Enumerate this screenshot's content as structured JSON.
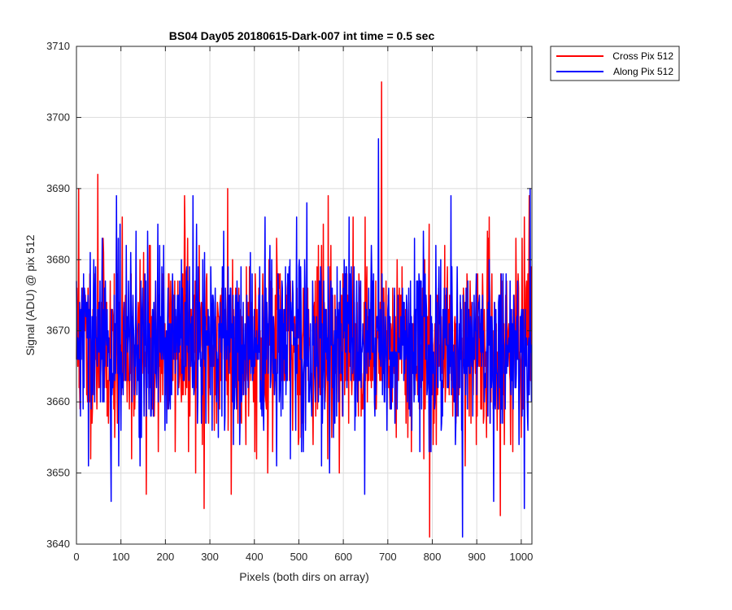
{
  "chart_data": {
    "type": "line",
    "title": "BS04 Day05 20180615-Dark-007 int time = 0.5 sec",
    "xlabel": "Pixels (both dirs on array)",
    "ylabel": "Signal (ADU) @ pix 512",
    "xlim": [
      0,
      1024
    ],
    "ylim": [
      3640,
      3710
    ],
    "xticks": [
      0,
      100,
      200,
      300,
      400,
      500,
      600,
      700,
      800,
      900,
      1000
    ],
    "yticks": [
      3640,
      3650,
      3660,
      3670,
      3680,
      3690,
      3700,
      3710
    ],
    "grid": true,
    "legend_position": "outside-top-right",
    "series": [
      {
        "name": "Cross Pix 512",
        "color": "#ff0000",
        "noise": {
          "points": 1024,
          "mean": 3668,
          "std": 6.5,
          "seed": 11
        },
        "spikes": [
          {
            "x": 5,
            "y": 3690
          },
          {
            "x": 48,
            "y": 3692
          },
          {
            "x": 157,
            "y": 3647
          },
          {
            "x": 243,
            "y": 3689
          },
          {
            "x": 287,
            "y": 3645
          },
          {
            "x": 340,
            "y": 3690
          },
          {
            "x": 348,
            "y": 3647
          },
          {
            "x": 566,
            "y": 3689
          },
          {
            "x": 686,
            "y": 3705
          },
          {
            "x": 794,
            "y": 3641
          },
          {
            "x": 953,
            "y": 3644
          },
          {
            "x": 1018,
            "y": 3689
          }
        ]
      },
      {
        "name": "Along Pix 512",
        "color": "#0000ff",
        "noise": {
          "points": 1024,
          "mean": 3668,
          "std": 6.5,
          "seed": 29
        },
        "spikes": [
          {
            "x": 78,
            "y": 3646
          },
          {
            "x": 90,
            "y": 3689
          },
          {
            "x": 262,
            "y": 3689
          },
          {
            "x": 518,
            "y": 3688
          },
          {
            "x": 648,
            "y": 3647
          },
          {
            "x": 679,
            "y": 3697
          },
          {
            "x": 842,
            "y": 3689
          },
          {
            "x": 868,
            "y": 3641
          },
          {
            "x": 938,
            "y": 3646
          },
          {
            "x": 1007,
            "y": 3645
          },
          {
            "x": 1020,
            "y": 3690
          }
        ]
      }
    ]
  }
}
